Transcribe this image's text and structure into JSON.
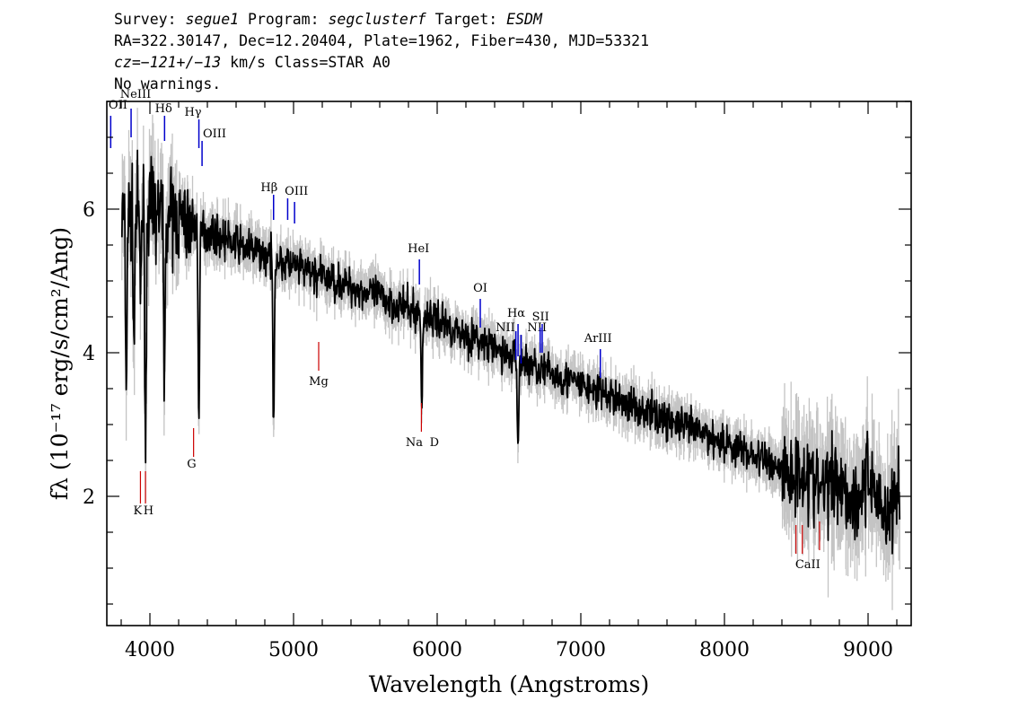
{
  "header": {
    "line1": {
      "survey_label": "Survey:",
      "survey": "segue1",
      "program_label": "Program:",
      "program": "segclusterf",
      "target_label": "Target:",
      "target": "ESDM"
    },
    "line2": "RA=322.30147, Dec=12.20404, Plate=1962, Fiber=430, MJD=53321",
    "line3": {
      "cz": "cz=−121+/−13",
      "rest": " km/s Class=STAR A0"
    },
    "line4": "No warnings."
  },
  "chart_data": {
    "type": "line",
    "xlabel": "Wavelength (Angstroms)",
    "ylabel": "fλ (10⁻¹⁷ erg/s/cm²/Ang)",
    "xlim": [
      3700,
      9300
    ],
    "ylim": [
      0.2,
      7.5
    ],
    "xticks": [
      4000,
      5000,
      6000,
      7000,
      8000,
      9000
    ],
    "yticks": [
      2,
      4,
      6
    ],
    "continuum": {
      "x": [
        3800,
        4000,
        4200,
        4500,
        5000,
        5500,
        6000,
        6500,
        7000,
        7500,
        8000,
        8500,
        9000,
        9200
      ],
      "y": [
        5.9,
        6.0,
        5.85,
        5.6,
        5.2,
        4.85,
        4.45,
        3.95,
        3.55,
        3.15,
        2.75,
        2.3,
        2.05,
        1.95
      ]
    },
    "absorption": [
      {
        "x": 3835,
        "depth": 2.4
      },
      {
        "x": 3889,
        "depth": 1.9
      },
      {
        "x": 3934,
        "depth": 1.2
      },
      {
        "x": 3970,
        "depth": 3.3
      },
      {
        "x": 4102,
        "depth": 2.4
      },
      {
        "x": 4341,
        "depth": 2.7
      },
      {
        "x": 4861,
        "depth": 2.3
      },
      {
        "x": 5893,
        "depth": 1.3
      },
      {
        "x": 6563,
        "depth": 1.2
      }
    ],
    "emission_lines": [
      {
        "label": "OII",
        "x": 3727
      },
      {
        "label": "NeIII",
        "x": 3869
      },
      {
        "label": "Hδ",
        "x": 4102
      },
      {
        "label": "Hγ",
        "x": 4341
      },
      {
        "label": "OIII",
        "x": 4363
      },
      {
        "label": "Hβ",
        "x": 4861
      },
      {
        "label": "OIII",
        "x": 4959
      },
      {
        "label": "OIII",
        "x": 5007
      },
      {
        "label": "HeI",
        "x": 5876
      },
      {
        "label": "OI",
        "x": 6300
      },
      {
        "label": "NII",
        "x": 6548
      },
      {
        "label": "Hα",
        "x": 6563
      },
      {
        "label": "NII",
        "x": 6584
      },
      {
        "label": "SII",
        "x": 6717
      },
      {
        "label": "SII",
        "x": 6731
      },
      {
        "label": "ArIII",
        "x": 7136
      }
    ],
    "absorption_labels": [
      {
        "label": "K",
        "x": 3934
      },
      {
        "label": "H",
        "x": 3969
      },
      {
        "label": "G",
        "x": 4304
      },
      {
        "label": "Mg",
        "x": 5175
      },
      {
        "label": "Na",
        "x": 5890
      },
      {
        "label": "D",
        "x": 5896
      },
      {
        "label": "CaII",
        "x": 8498
      },
      {
        "label": "CaII",
        "x": 8542
      },
      {
        "label": "CaII",
        "x": 8662
      }
    ]
  },
  "colors": {
    "flux": "#000000",
    "error_band": "#c4c4c4",
    "emission": "#0000cc",
    "absorption": "#cc0000"
  }
}
